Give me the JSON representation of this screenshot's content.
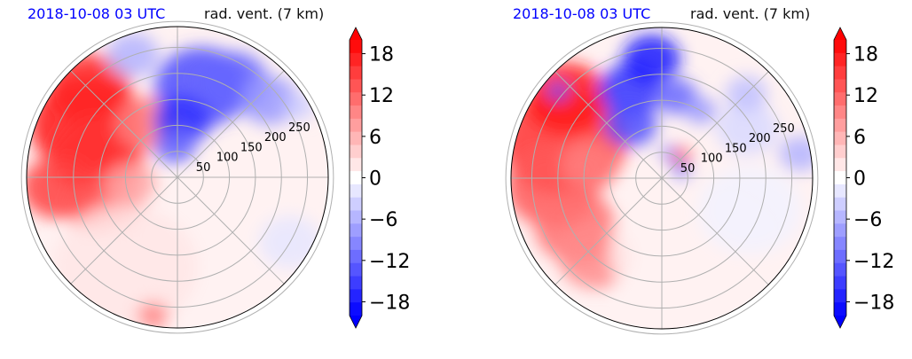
{
  "chart_data": [
    {
      "type": "heatmap",
      "projection": "polar",
      "title_left": "2018-10-08 03 UTC",
      "title_right": "rad. vent. (7 km)",
      "radial_ticks": [
        "50",
        "100",
        "150",
        "200",
        "250"
      ],
      "radial_values": [
        50,
        100,
        150,
        200,
        250
      ],
      "rmax": 290,
      "radial_gridlines": 6,
      "angular_spokes_deg": [
        0,
        45,
        90,
        135,
        180,
        225,
        270,
        315
      ],
      "colorbar": {
        "ticks": [
          "18",
          "12",
          "6",
          "0",
          "−6",
          "−12",
          "−18"
        ],
        "tick_values": [
          18,
          12,
          6,
          0,
          -6,
          -12,
          -18
        ],
        "range": [
          -20,
          20
        ],
        "extend": "both",
        "colormap": "bwr",
        "levels": 21
      },
      "fields": [
        {
          "region": "west-northwest",
          "sign": "positive",
          "magnitude": 18
        },
        {
          "region": "north-northeast",
          "sign": "negative",
          "magnitude": -16
        },
        {
          "region": "southwest arc",
          "sign": "positive",
          "magnitude": 14
        },
        {
          "region": "southeast",
          "sign": "weak positive",
          "magnitude": 1
        }
      ]
    },
    {
      "type": "heatmap",
      "projection": "polar",
      "title_left": "2018-10-08 03 UTC",
      "title_right": "rad. vent. (7 km)",
      "radial_ticks": [
        "50",
        "100",
        "150",
        "200",
        "250"
      ],
      "radial_values": [
        50,
        100,
        150,
        200,
        250
      ],
      "rmax": 290,
      "radial_gridlines": 6,
      "angular_spokes_deg": [
        0,
        45,
        90,
        135,
        180,
        225,
        270,
        315
      ],
      "colorbar": {
        "ticks": [
          "18",
          "12",
          "6",
          "0",
          "−6",
          "−12",
          "−18"
        ],
        "tick_values": [
          18,
          12,
          6,
          0,
          -6,
          -12,
          -18
        ],
        "range": [
          -20,
          20
        ],
        "extend": "both",
        "colormap": "bwr",
        "levels": 21
      },
      "fields": [
        {
          "region": "west",
          "sign": "positive",
          "magnitude": 16
        },
        {
          "region": "north band",
          "sign": "negative",
          "magnitude": -16
        },
        {
          "region": "center",
          "sign": "mixed",
          "magnitude": 10
        },
        {
          "region": "east",
          "sign": "weak negative",
          "magnitude": -3
        }
      ]
    }
  ]
}
